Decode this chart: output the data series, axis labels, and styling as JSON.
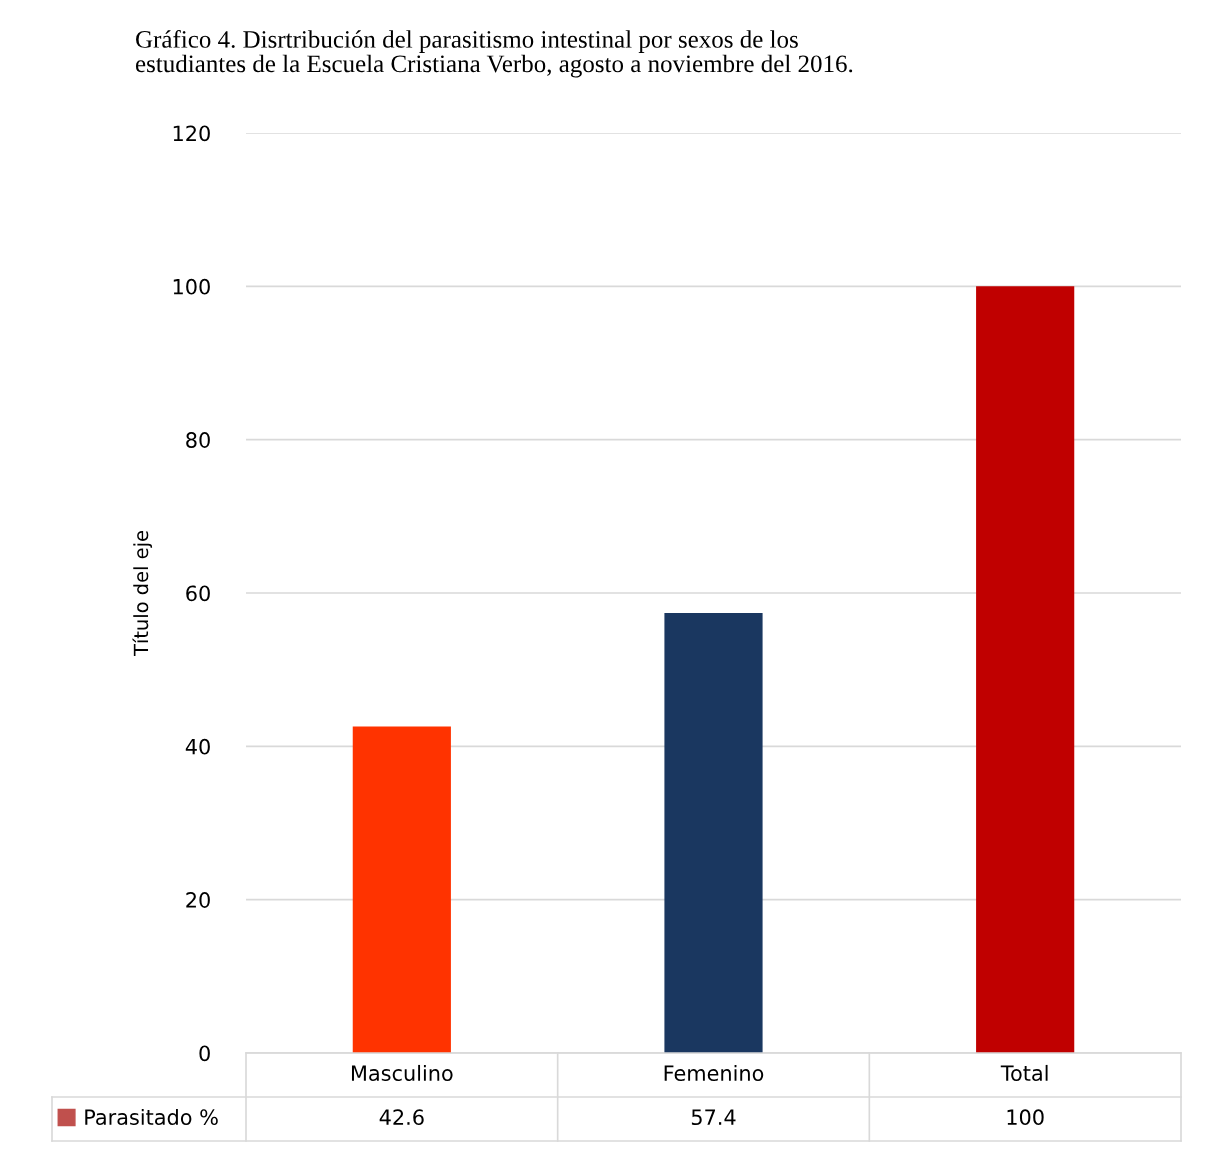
{
  "chart_data": {
    "type": "bar",
    "title": "Gráfico 4. Disrtribución del parasitismo intestinal por sexos de los\nestudiantes de la Escuela Cristiana Verbo, agosto a noviembre del 2016.",
    "ylabel": "Título del eje",
    "categories": [
      "Masculino",
      "Femenino",
      "Total"
    ],
    "series": [
      {
        "name": "Parasitado %",
        "color": "#c0504d",
        "colors": [
          "#ff3300",
          "#1a3760",
          "#c00000"
        ],
        "values": [
          42.6,
          57.4,
          100
        ]
      }
    ],
    "ylim": [
      0,
      120
    ],
    "yticks": [
      0,
      20,
      40,
      60,
      80,
      100,
      120
    ],
    "grid": "y",
    "legend": "bottom",
    "data_labels": true
  }
}
